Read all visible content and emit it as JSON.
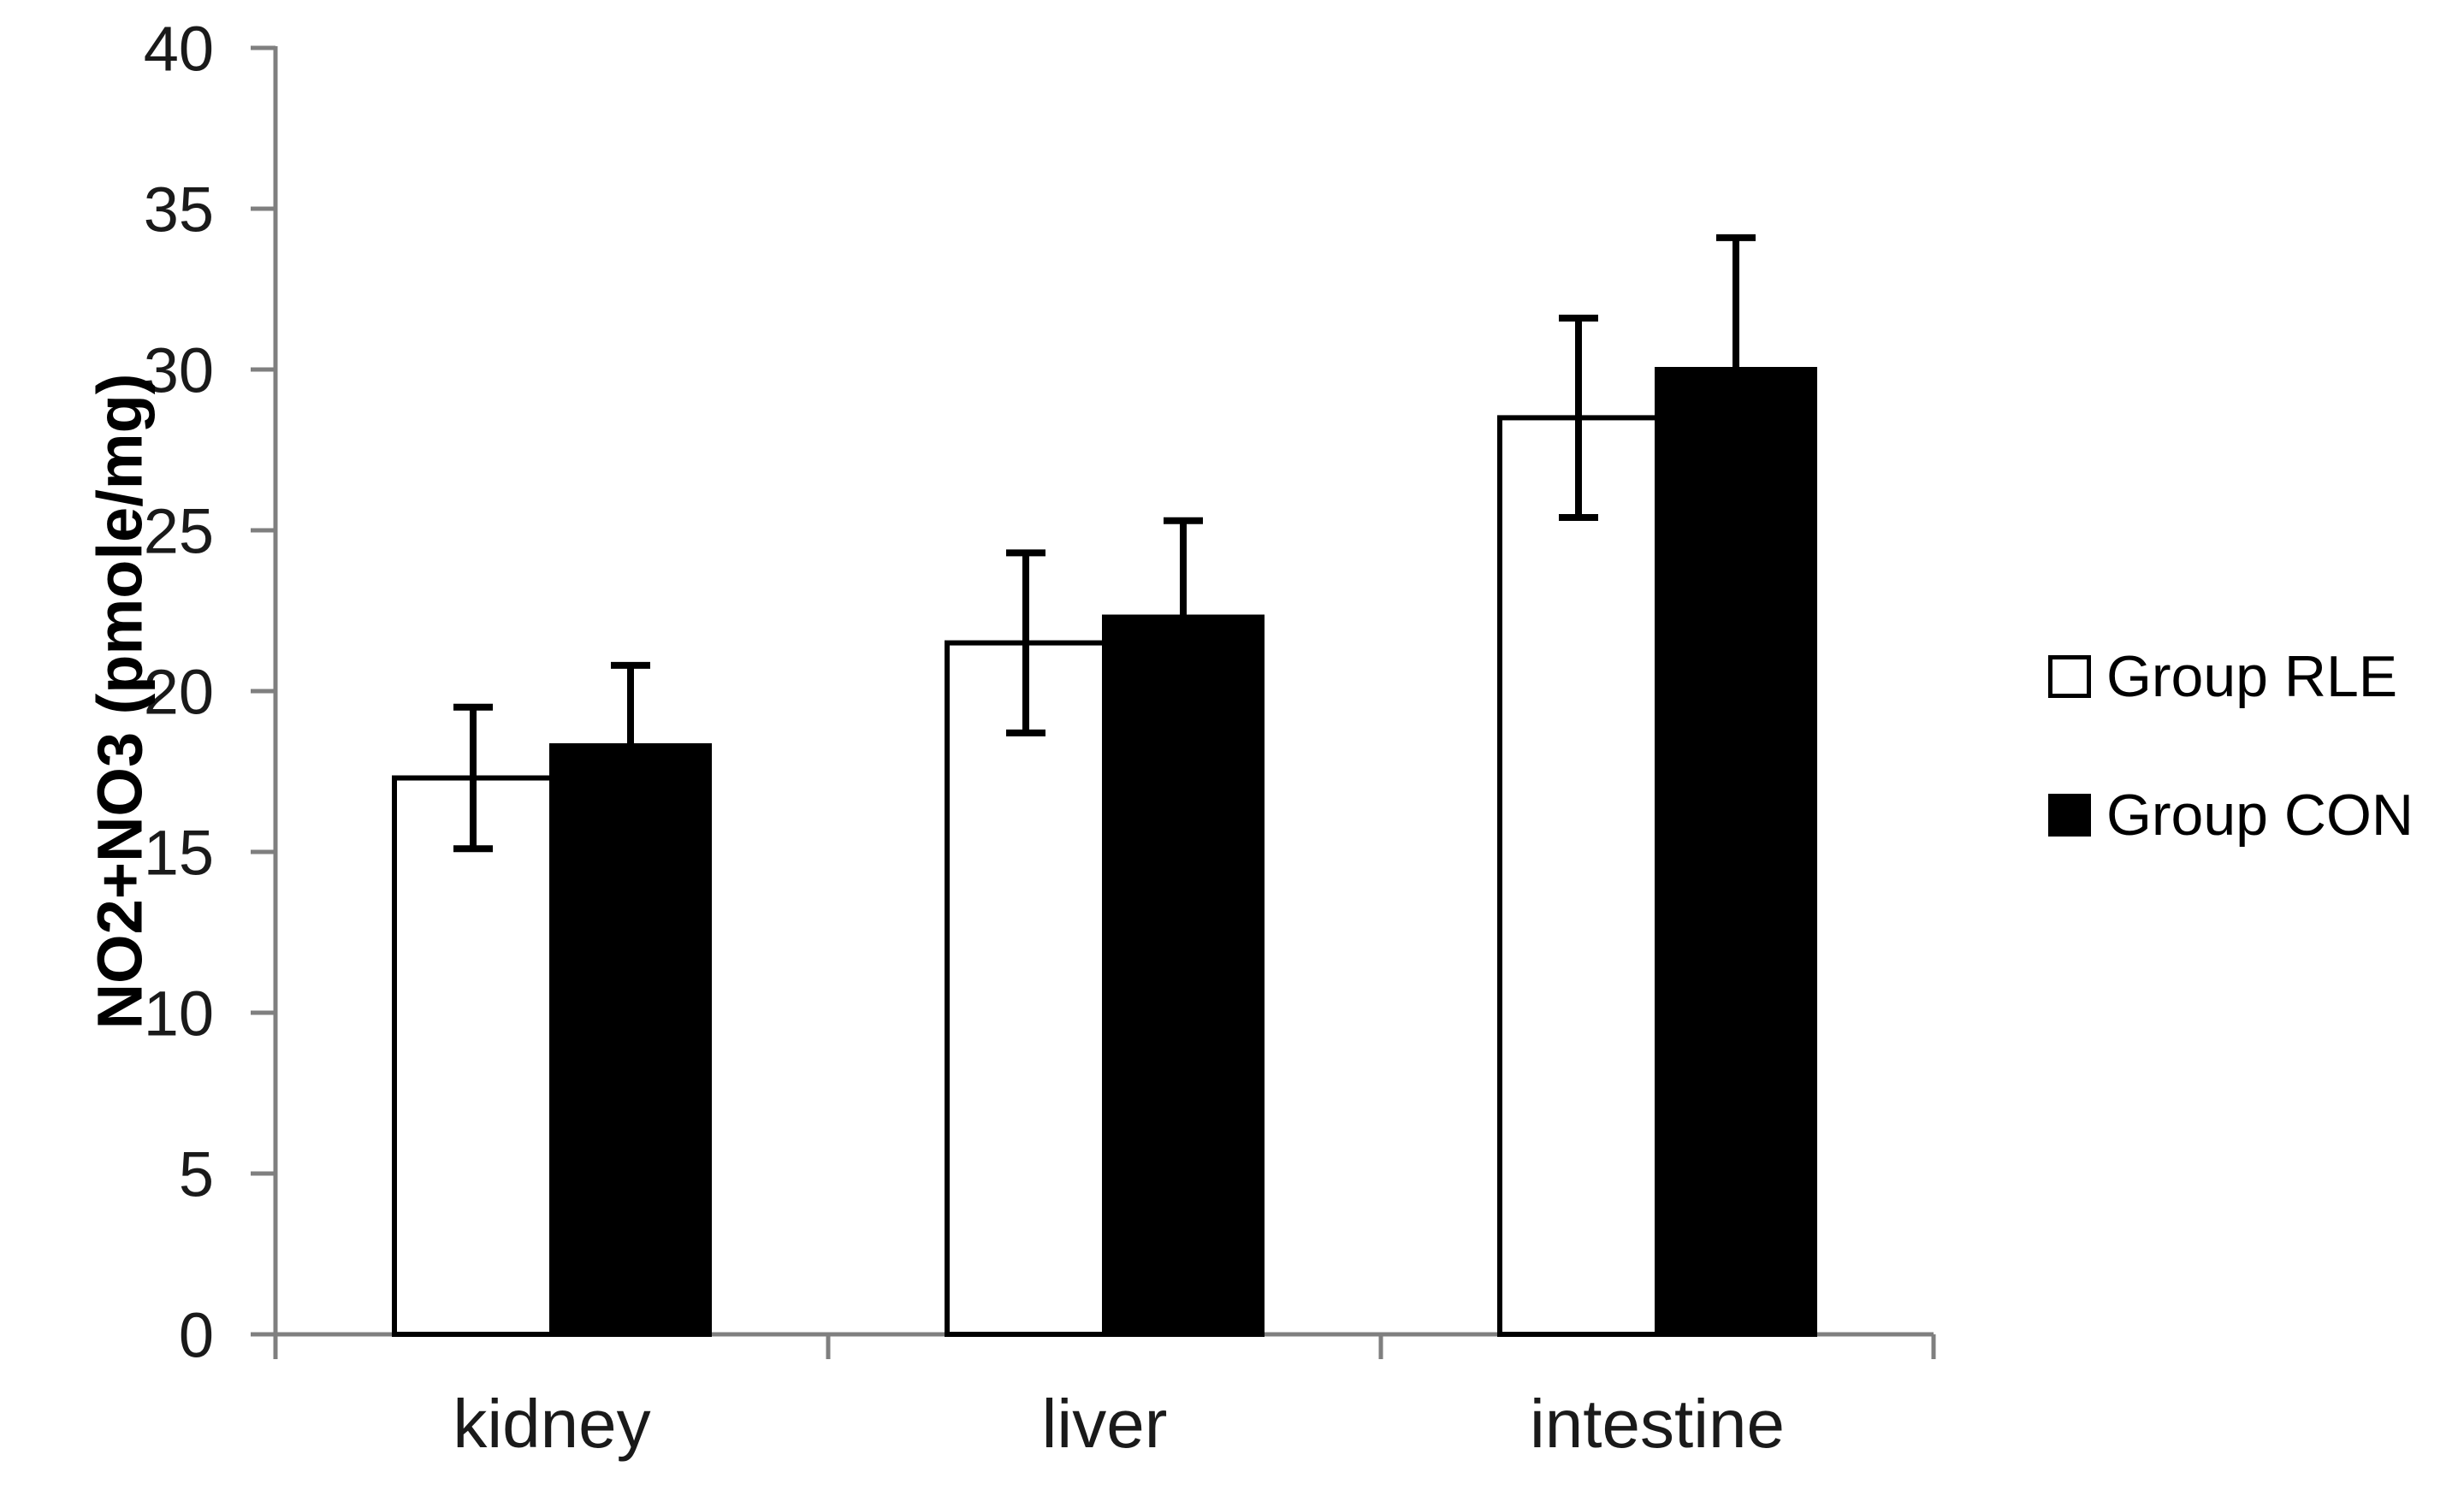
{
  "chart_data": {
    "type": "bar",
    "title": "",
    "xlabel": "",
    "ylabel": "NO2+NO3 (pmole/mg)",
    "categories": [
      "kidney",
      "liver",
      "intestine"
    ],
    "series": [
      {
        "name": "Group RLE",
        "fill": "#ffffff",
        "values": [
          17.3,
          21.5,
          28.5
        ],
        "errors": [
          2.2,
          2.8,
          3.1
        ]
      },
      {
        "name": "Group CON",
        "fill": "#000000",
        "values": [
          18.3,
          22.3,
          30.0
        ],
        "errors": [
          2.5,
          3.0,
          4.1
        ]
      }
    ],
    "ylim": [
      0,
      40
    ],
    "ytick_step": 5,
    "y_ticks": [
      0,
      5,
      10,
      15,
      20,
      25,
      30,
      35,
      40
    ],
    "grid": false,
    "legend_position": "right",
    "error_bars": "both-directions, lower whisker hidden on filled black bars",
    "colors": {
      "axis": "#7f7f7f",
      "bar_outline": "#000000",
      "error_bar": "#000000",
      "tick_label": "#1a1a1a",
      "title_text": "#000000"
    }
  },
  "legend": {
    "items": [
      {
        "label": "Group RLE",
        "swatch": "open-square"
      },
      {
        "label": "Group CON",
        "swatch": "filled-square"
      }
    ]
  }
}
